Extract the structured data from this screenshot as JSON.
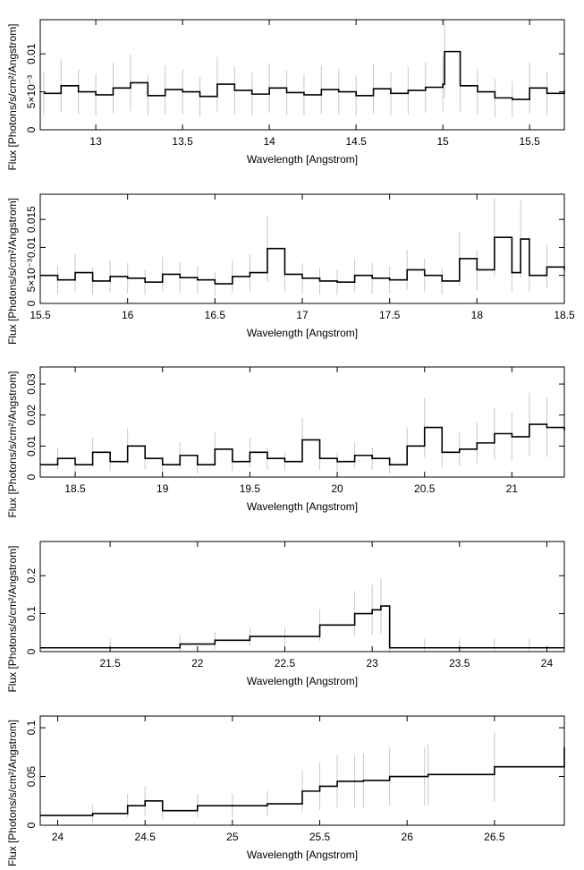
{
  "chart_data": [
    {
      "type": "line",
      "xlabel": "Wavelength [Angstrom]",
      "ylabel": "Flux [Photons/s/cm²/Angstrom]",
      "xlim": [
        12.68,
        15.7
      ],
      "ylim": [
        0,
        0.0145
      ],
      "xticks": [
        13,
        13.5,
        14,
        14.5,
        15,
        15.5
      ],
      "xtick_labels": [
        "13",
        "13.5",
        "14",
        "14.5",
        "15",
        "15.5"
      ],
      "yticks": [
        0,
        0.005,
        0.01
      ],
      "ytick_labels": [
        "0",
        "5×10⁻³",
        "0.01"
      ],
      "series": [
        {
          "x": [
            12.7,
            12.8,
            12.9,
            13.0,
            13.1,
            13.2,
            13.3,
            13.4,
            13.5,
            13.6,
            13.7,
            13.8,
            13.9,
            14.0,
            14.1,
            14.2,
            14.3,
            14.4,
            14.5,
            14.6,
            14.7,
            14.8,
            14.9,
            15.0,
            15.01,
            15.1,
            15.2,
            15.3,
            15.4,
            15.5,
            15.6,
            15.7
          ],
          "y": [
            0.0048,
            0.0058,
            0.005,
            0.0046,
            0.0055,
            0.0062,
            0.0045,
            0.0053,
            0.005,
            0.0044,
            0.006,
            0.0052,
            0.0047,
            0.0055,
            0.0049,
            0.0046,
            0.0053,
            0.005,
            0.0045,
            0.0054,
            0.0048,
            0.0052,
            0.0056,
            0.006,
            0.0103,
            0.0058,
            0.005,
            0.0042,
            0.004,
            0.0055,
            0.0048,
            0.0052
          ]
        }
      ]
    },
    {
      "type": "line",
      "xlabel": "Wavelength [Angstrom]",
      "ylabel": "Flux [Photons/s/cm²/Angstrom]",
      "xlim": [
        15.5,
        18.5
      ],
      "ylim": [
        0,
        0.0195
      ],
      "xticks": [
        15.5,
        16,
        16.5,
        17,
        17.5,
        18,
        18.5
      ],
      "xtick_labels": [
        "15.5",
        "16",
        "16.5",
        "17",
        "17.5",
        "18",
        "18.5"
      ],
      "yticks": [
        0,
        0.005,
        0.01,
        0.015
      ],
      "ytick_labels": [
        "0",
        "5×10⁻³",
        "0.01",
        "0.015"
      ],
      "series": [
        {
          "x": [
            15.5,
            15.6,
            15.7,
            15.8,
            15.9,
            16.0,
            16.1,
            16.2,
            16.3,
            16.4,
            16.5,
            16.6,
            16.7,
            16.8,
            16.9,
            17.0,
            17.1,
            17.2,
            17.3,
            17.4,
            17.5,
            17.6,
            17.7,
            17.8,
            17.9,
            18.0,
            18.1,
            18.2,
            18.25,
            18.3,
            18.4,
            18.5
          ],
          "y": [
            0.005,
            0.0042,
            0.0055,
            0.004,
            0.0048,
            0.0045,
            0.0038,
            0.0052,
            0.0046,
            0.0042,
            0.0035,
            0.0048,
            0.0055,
            0.0098,
            0.0052,
            0.0045,
            0.004,
            0.0038,
            0.005,
            0.0045,
            0.0042,
            0.006,
            0.005,
            0.004,
            0.008,
            0.006,
            0.0118,
            0.0055,
            0.0115,
            0.005,
            0.0065,
            0.006
          ]
        }
      ]
    },
    {
      "type": "line",
      "xlabel": "Wavelength [Angstrom]",
      "ylabel": "Flux [Photons/s/cm²/Angstrom]",
      "xlim": [
        18.3,
        21.3
      ],
      "ylim": [
        0,
        0.0355
      ],
      "xticks": [
        18.5,
        19,
        19.5,
        20,
        20.5,
        21
      ],
      "xtick_labels": [
        "18.5",
        "19",
        "19.5",
        "20",
        "20.5",
        "21"
      ],
      "yticks": [
        0,
        0.01,
        0.02,
        0.03
      ],
      "ytick_labels": [
        "0",
        "0.01",
        "0.02",
        "0.03"
      ],
      "series": [
        {
          "x": [
            18.3,
            18.4,
            18.5,
            18.6,
            18.7,
            18.8,
            18.9,
            19.0,
            19.1,
            19.2,
            19.3,
            19.4,
            19.5,
            19.6,
            19.7,
            19.8,
            19.9,
            20.0,
            20.1,
            20.2,
            20.3,
            20.4,
            20.5,
            20.6,
            20.7,
            20.8,
            20.9,
            21.0,
            21.1,
            21.2,
            21.3
          ],
          "y": [
            0.004,
            0.006,
            0.004,
            0.008,
            0.005,
            0.01,
            0.006,
            0.004,
            0.007,
            0.004,
            0.009,
            0.005,
            0.008,
            0.006,
            0.005,
            0.012,
            0.006,
            0.005,
            0.007,
            0.006,
            0.004,
            0.01,
            0.016,
            0.008,
            0.009,
            0.011,
            0.014,
            0.013,
            0.017,
            0.016,
            0.015
          ]
        }
      ]
    },
    {
      "type": "line",
      "xlabel": "Wavelength [Angstrom]",
      "ylabel": "Flux [Photons/s/cm²/Angstrom]",
      "xlim": [
        21.1,
        24.1
      ],
      "ylim": [
        0,
        0.29
      ],
      "xticks": [
        21.5,
        22,
        22.5,
        23,
        23.5,
        24
      ],
      "xtick_labels": [
        "21.5",
        "22",
        "22.5",
        "23",
        "23.5",
        "24"
      ],
      "yticks": [
        0,
        0.1,
        0.2
      ],
      "ytick_labels": [
        "0",
        "0.1",
        "0.2"
      ],
      "series": [
        {
          "x": [
            21.1,
            21.5,
            21.9,
            22.1,
            22.3,
            22.5,
            22.7,
            22.9,
            23.0,
            23.05,
            23.1,
            23.3,
            23.5,
            23.7,
            23.9,
            24.1
          ],
          "y": [
            0.01,
            0.01,
            0.02,
            0.03,
            0.04,
            0.04,
            0.07,
            0.1,
            0.11,
            0.12,
            0.01,
            0.01,
            0.01,
            0.01,
            0.01,
            0.01
          ]
        }
      ]
    },
    {
      "type": "line",
      "xlabel": "Wavelength [Angstrom]",
      "ylabel": "Flux [Photons/s/cm²/Angstrom]",
      "xlim": [
        23.9,
        26.9
      ],
      "ylim": [
        0,
        0.112
      ],
      "xticks": [
        24,
        24.5,
        25,
        25.5,
        26,
        26.5
      ],
      "xtick_labels": [
        "24",
        "24.5",
        "25",
        "25.5",
        "26",
        "26.5"
      ],
      "yticks": [
        0,
        0.05,
        0.1
      ],
      "ytick_labels": [
        "0",
        "0.05",
        "0.1"
      ],
      "series": [
        {
          "x": [
            23.9,
            24.2,
            24.4,
            24.5,
            24.6,
            24.8,
            25.0,
            25.2,
            25.4,
            25.5,
            25.6,
            25.7,
            25.75,
            25.9,
            26.1,
            26.12,
            26.5,
            26.9
          ],
          "y": [
            0.01,
            0.012,
            0.02,
            0.025,
            0.015,
            0.02,
            0.02,
            0.022,
            0.035,
            0.04,
            0.045,
            0.045,
            0.046,
            0.05,
            0.05,
            0.052,
            0.06,
            0.08
          ]
        }
      ]
    }
  ]
}
